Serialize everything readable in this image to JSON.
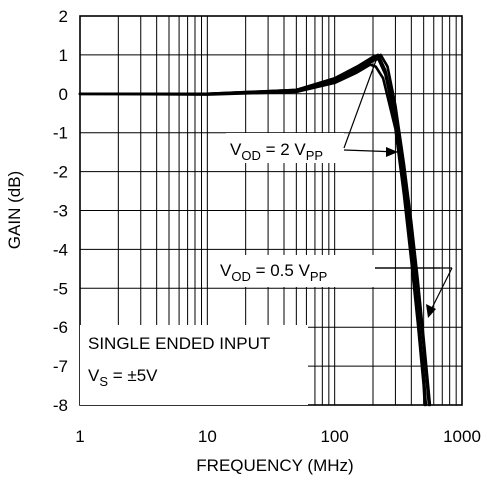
{
  "chart_data": {
    "type": "line",
    "xlabel": "FREQUENCY (MHz)",
    "ylabel": "GAIN (dB)",
    "x_scale": "log",
    "xlim": [
      1,
      1000
    ],
    "ylim": [
      -8,
      2
    ],
    "grid": true,
    "x_tick_labels": [
      "1",
      "10",
      "100",
      "1000"
    ],
    "x_ticks": [
      1,
      10,
      100,
      1000
    ],
    "y_ticks": [
      2,
      1,
      0,
      -1,
      -2,
      -3,
      -4,
      -5,
      -6,
      -7,
      -8
    ],
    "y_tick_labels": [
      "2",
      "1",
      "0",
      "-1",
      "-2",
      "-3",
      "-4",
      "-5",
      "-6",
      "-7",
      "-8"
    ],
    "annotations": {
      "vod_2": {
        "main": "V",
        "sub1": "OD",
        "mid": " = 2 V",
        "sub2": "PP"
      },
      "vod_05": {
        "main": "V",
        "sub1": "OD",
        "mid": " = 0.5 V",
        "sub2": "PP"
      },
      "input_type": "SINGLE ENDED INPUT",
      "vs": {
        "main": "V",
        "sub": "S",
        "rest": " = ±5V"
      }
    },
    "series": [
      {
        "label_ref": "vod_2",
        "x": [
          1,
          10,
          50,
          100,
          150,
          200,
          220,
          250,
          300,
          350,
          400,
          450,
          500,
          550
        ],
        "y": [
          0,
          0,
          0.1,
          0.4,
          0.7,
          0.95,
          1.0,
          0.6,
          -0.5,
          -2.0,
          -3.5,
          -5.0,
          -6.5,
          -8.0
        ]
      },
      {
        "label_ref": "vod_2",
        "x": [
          1,
          10,
          50,
          100,
          150,
          200,
          230,
          260,
          300,
          350,
          400,
          450,
          500,
          560
        ],
        "y": [
          0,
          0,
          0.1,
          0.35,
          0.65,
          0.9,
          1.0,
          0.7,
          -0.3,
          -1.8,
          -3.3,
          -4.8,
          -6.3,
          -8.0
        ]
      },
      {
        "label_ref": "vod_05",
        "x": [
          1,
          10,
          50,
          100,
          150,
          200,
          220,
          250,
          300,
          350,
          400,
          450,
          500,
          520
        ],
        "y": [
          0,
          0,
          0.05,
          0.3,
          0.6,
          0.85,
          0.9,
          0.5,
          -0.7,
          -2.3,
          -4.0,
          -5.6,
          -7.2,
          -8.0
        ]
      },
      {
        "label_ref": "vod_05",
        "x": [
          1,
          10,
          50,
          100,
          150,
          190,
          210,
          240,
          300,
          350,
          400,
          450,
          500,
          510
        ],
        "y": [
          0,
          -0.02,
          0.05,
          0.28,
          0.55,
          0.75,
          0.7,
          0.4,
          -0.9,
          -2.6,
          -4.3,
          -5.9,
          -7.5,
          -8.0
        ]
      }
    ]
  }
}
